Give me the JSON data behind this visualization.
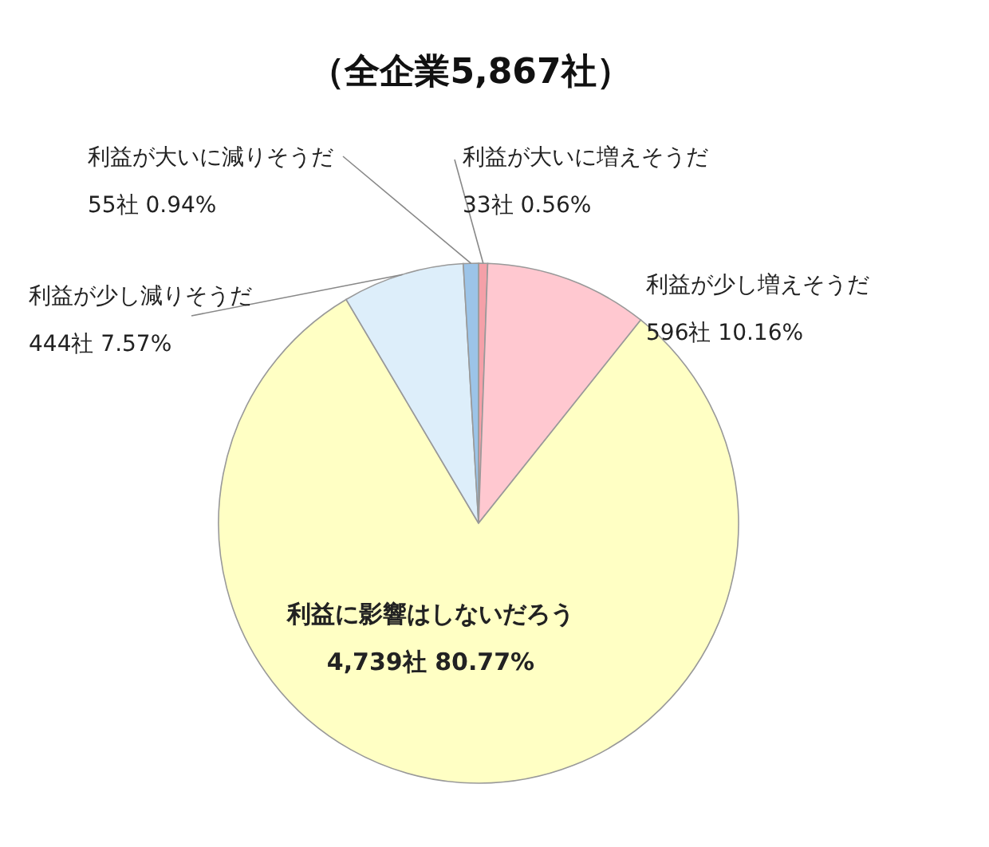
{
  "chart_data": {
    "type": "pie",
    "title": "（全企業5,867社）",
    "categories": [
      "利益が大いに増えそうだ",
      "利益が少し増えそうだ",
      "利益に影響はしないだろう",
      "利益が少し減りそうだ",
      "利益が大いに減りそうだ"
    ],
    "values": [
      33,
      596,
      4739,
      444,
      55
    ],
    "value_labels": [
      "33社 0.56%",
      "596社 10.16%",
      "4,739社 80.77%",
      "444社 7.57%",
      "55社 0.94%"
    ],
    "colors": [
      "#f4a0a8",
      "#ffc8d0",
      "#ffffc4",
      "#ddeefa",
      "#9cc4e8"
    ],
    "legend": false
  }
}
